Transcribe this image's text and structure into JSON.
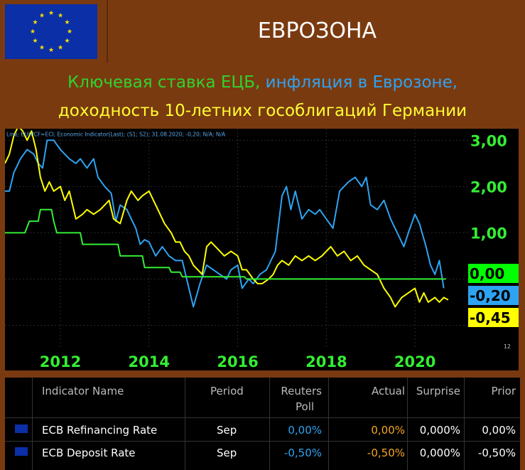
{
  "header": {
    "title": "ЕВРОЗОНА"
  },
  "subtitle": {
    "part1": "Ключевая ставка ЕЦБ,",
    "part2": " инфляция в Еврозоне,",
    "line2": "доходность 10-летних гособлигаций Германии",
    "colors": {
      "part1": "#2fd32f",
      "part2": "#2ea3f2",
      "line2": "#ffff33"
    }
  },
  "chart_data": {
    "type": "line",
    "legend_text": "Line; EUHICF=ECI; Economic Indicator(Last); (S1; S2); 31.08.2020; -0,20; N/A; N/A",
    "x_tick_labels": [
      "2012",
      "2014",
      "2016",
      "2018",
      "2020"
    ],
    "y_tick_labels": [
      "3,00",
      "2,00",
      "1,00"
    ],
    "ylim": [
      -1.5,
      3.25
    ],
    "xlim": [
      2010.75,
      2021.2
    ],
    "corner_labels": [
      "12",
      "12"
    ],
    "last_values": [
      {
        "label": "0,00",
        "color": "#00ff00"
      },
      {
        "label": "-0,20",
        "color": "#2ea3f2"
      },
      {
        "label": "-0,45",
        "color": "#ffff00"
      }
    ],
    "series": [
      {
        "color": "#2ea3f2",
        "points": [
          [
            2010.75,
            1.9
          ],
          [
            2010.85,
            1.9
          ],
          [
            2010.95,
            2.3
          ],
          [
            2011.1,
            2.6
          ],
          [
            2011.25,
            2.8
          ],
          [
            2011.4,
            2.7
          ],
          [
            2011.5,
            2.5
          ],
          [
            2011.6,
            2.4
          ],
          [
            2011.7,
            3.0
          ],
          [
            2011.85,
            3.0
          ],
          [
            2012.0,
            2.8
          ],
          [
            2012.2,
            2.6
          ],
          [
            2012.35,
            2.5
          ],
          [
            2012.45,
            2.6
          ],
          [
            2012.6,
            2.4
          ],
          [
            2012.75,
            2.6
          ],
          [
            2012.85,
            2.2
          ],
          [
            2013.0,
            2.0
          ],
          [
            2013.15,
            1.85
          ],
          [
            2013.25,
            1.25
          ],
          [
            2013.35,
            1.6
          ],
          [
            2013.5,
            1.5
          ],
          [
            2013.6,
            1.3
          ],
          [
            2013.7,
            1.1
          ],
          [
            2013.8,
            0.75
          ],
          [
            2013.9,
            0.85
          ],
          [
            2014.0,
            0.8
          ],
          [
            2014.15,
            0.5
          ],
          [
            2014.3,
            0.7
          ],
          [
            2014.45,
            0.5
          ],
          [
            2014.6,
            0.4
          ],
          [
            2014.75,
            0.4
          ],
          [
            2014.9,
            -0.2
          ],
          [
            2015.0,
            -0.6
          ],
          [
            2015.15,
            -0.1
          ],
          [
            2015.3,
            0.3
          ],
          [
            2015.45,
            0.2
          ],
          [
            2015.6,
            0.1
          ],
          [
            2015.75,
            0.0
          ],
          [
            2015.85,
            0.2
          ],
          [
            2016.0,
            0.3
          ],
          [
            2016.1,
            -0.2
          ],
          [
            2016.25,
            0.0
          ],
          [
            2016.35,
            -0.1
          ],
          [
            2016.5,
            0.1
          ],
          [
            2016.65,
            0.2
          ],
          [
            2016.75,
            0.4
          ],
          [
            2016.85,
            0.6
          ],
          [
            2017.0,
            1.8
          ],
          [
            2017.1,
            2.0
          ],
          [
            2017.2,
            1.5
          ],
          [
            2017.3,
            1.9
          ],
          [
            2017.45,
            1.3
          ],
          [
            2017.6,
            1.5
          ],
          [
            2017.75,
            1.4
          ],
          [
            2017.85,
            1.5
          ],
          [
            2018.0,
            1.3
          ],
          [
            2018.15,
            1.1
          ],
          [
            2018.3,
            1.9
          ],
          [
            2018.5,
            2.1
          ],
          [
            2018.65,
            2.2
          ],
          [
            2018.8,
            2.0
          ],
          [
            2018.9,
            2.2
          ],
          [
            2019.0,
            1.6
          ],
          [
            2019.15,
            1.5
          ],
          [
            2019.3,
            1.7
          ],
          [
            2019.45,
            1.3
          ],
          [
            2019.6,
            1.0
          ],
          [
            2019.75,
            0.7
          ],
          [
            2019.85,
            1.0
          ],
          [
            2020.0,
            1.4
          ],
          [
            2020.1,
            1.2
          ],
          [
            2020.25,
            0.7
          ],
          [
            2020.35,
            0.3
          ],
          [
            2020.45,
            0.1
          ],
          [
            2020.55,
            0.4
          ],
          [
            2020.65,
            -0.2
          ]
        ]
      },
      {
        "color": "#ffff00",
        "points": [
          [
            2010.75,
            2.5
          ],
          [
            2010.85,
            2.7
          ],
          [
            2010.95,
            3.1
          ],
          [
            2011.05,
            3.3
          ],
          [
            2011.15,
            3.2
          ],
          [
            2011.25,
            3.0
          ],
          [
            2011.35,
            3.2
          ],
          [
            2011.45,
            2.8
          ],
          [
            2011.55,
            2.2
          ],
          [
            2011.65,
            1.9
          ],
          [
            2011.75,
            2.1
          ],
          [
            2011.85,
            1.9
          ],
          [
            2012.0,
            2.0
          ],
          [
            2012.1,
            1.7
          ],
          [
            2012.2,
            1.9
          ],
          [
            2012.35,
            1.3
          ],
          [
            2012.5,
            1.4
          ],
          [
            2012.6,
            1.5
          ],
          [
            2012.75,
            1.4
          ],
          [
            2012.9,
            1.5
          ],
          [
            2013.0,
            1.6
          ],
          [
            2013.1,
            1.7
          ],
          [
            2013.2,
            1.3
          ],
          [
            2013.35,
            1.2
          ],
          [
            2013.5,
            1.7
          ],
          [
            2013.6,
            1.9
          ],
          [
            2013.75,
            1.7
          ],
          [
            2013.85,
            1.8
          ],
          [
            2014.0,
            1.9
          ],
          [
            2014.1,
            1.7
          ],
          [
            2014.2,
            1.5
          ],
          [
            2014.35,
            1.2
          ],
          [
            2014.5,
            1.0
          ],
          [
            2014.6,
            0.8
          ],
          [
            2014.7,
            0.8
          ],
          [
            2014.8,
            0.6
          ],
          [
            2014.9,
            0.5
          ],
          [
            2015.0,
            0.3
          ],
          [
            2015.1,
            0.2
          ],
          [
            2015.2,
            0.1
          ],
          [
            2015.3,
            0.7
          ],
          [
            2015.4,
            0.8
          ],
          [
            2015.5,
            0.7
          ],
          [
            2015.6,
            0.6
          ],
          [
            2015.7,
            0.5
          ],
          [
            2015.85,
            0.6
          ],
          [
            2016.0,
            0.5
          ],
          [
            2016.1,
            0.2
          ],
          [
            2016.2,
            0.2
          ],
          [
            2016.35,
            0.0
          ],
          [
            2016.45,
            -0.1
          ],
          [
            2016.55,
            -0.1
          ],
          [
            2016.7,
            0.0
          ],
          [
            2016.8,
            0.1
          ],
          [
            2016.9,
            0.3
          ],
          [
            2017.0,
            0.4
          ],
          [
            2017.15,
            0.3
          ],
          [
            2017.3,
            0.5
          ],
          [
            2017.45,
            0.4
          ],
          [
            2017.6,
            0.5
          ],
          [
            2017.75,
            0.4
          ],
          [
            2017.9,
            0.5
          ],
          [
            2018.0,
            0.6
          ],
          [
            2018.1,
            0.7
          ],
          [
            2018.25,
            0.5
          ],
          [
            2018.4,
            0.6
          ],
          [
            2018.55,
            0.4
          ],
          [
            2018.7,
            0.5
          ],
          [
            2018.85,
            0.3
          ],
          [
            2019.0,
            0.2
          ],
          [
            2019.15,
            0.1
          ],
          [
            2019.3,
            -0.2
          ],
          [
            2019.45,
            -0.4
          ],
          [
            2019.55,
            -0.6
          ],
          [
            2019.7,
            -0.4
          ],
          [
            2019.85,
            -0.3
          ],
          [
            2020.0,
            -0.2
          ],
          [
            2020.1,
            -0.5
          ],
          [
            2020.2,
            -0.3
          ],
          [
            2020.3,
            -0.5
          ],
          [
            2020.45,
            -0.4
          ],
          [
            2020.55,
            -0.5
          ],
          [
            2020.65,
            -0.4
          ],
          [
            2020.75,
            -0.45
          ]
        ]
      },
      {
        "color": "#33ee33",
        "points": [
          [
            2010.75,
            1.0
          ],
          [
            2011.2,
            1.0
          ],
          [
            2011.3,
            1.25
          ],
          [
            2011.5,
            1.25
          ],
          [
            2011.55,
            1.5
          ],
          [
            2011.8,
            1.5
          ],
          [
            2011.85,
            1.25
          ],
          [
            2011.92,
            1.0
          ],
          [
            2012.45,
            1.0
          ],
          [
            2012.5,
            0.75
          ],
          [
            2013.3,
            0.75
          ],
          [
            2013.35,
            0.5
          ],
          [
            2013.85,
            0.5
          ],
          [
            2013.9,
            0.25
          ],
          [
            2014.45,
            0.25
          ],
          [
            2014.5,
            0.15
          ],
          [
            2014.7,
            0.15
          ],
          [
            2014.75,
            0.05
          ],
          [
            2016.15,
            0.05
          ],
          [
            2016.2,
            0.0
          ],
          [
            2020.7,
            0.0
          ]
        ]
      }
    ]
  },
  "table": {
    "headers": [
      "Indicator Name",
      "Period",
      "Reuters",
      "Poll",
      "Actual",
      "Surprise",
      "Prior"
    ],
    "rows": [
      {
        "name": "ECB Refinancing Rate",
        "period": "Sep",
        "poll": "0,00%",
        "actual": "0,00%",
        "surprise": "0,000%",
        "prior": "0,00%"
      },
      {
        "name": "ECB Deposit Rate",
        "period": "Sep",
        "poll": "-0,50%",
        "actual": "-0,50%",
        "surprise": "0,000%",
        "prior": "-0,50%"
      }
    ],
    "colors": {
      "poll": "#2ea3f2",
      "actual": "#f5a623"
    }
  }
}
